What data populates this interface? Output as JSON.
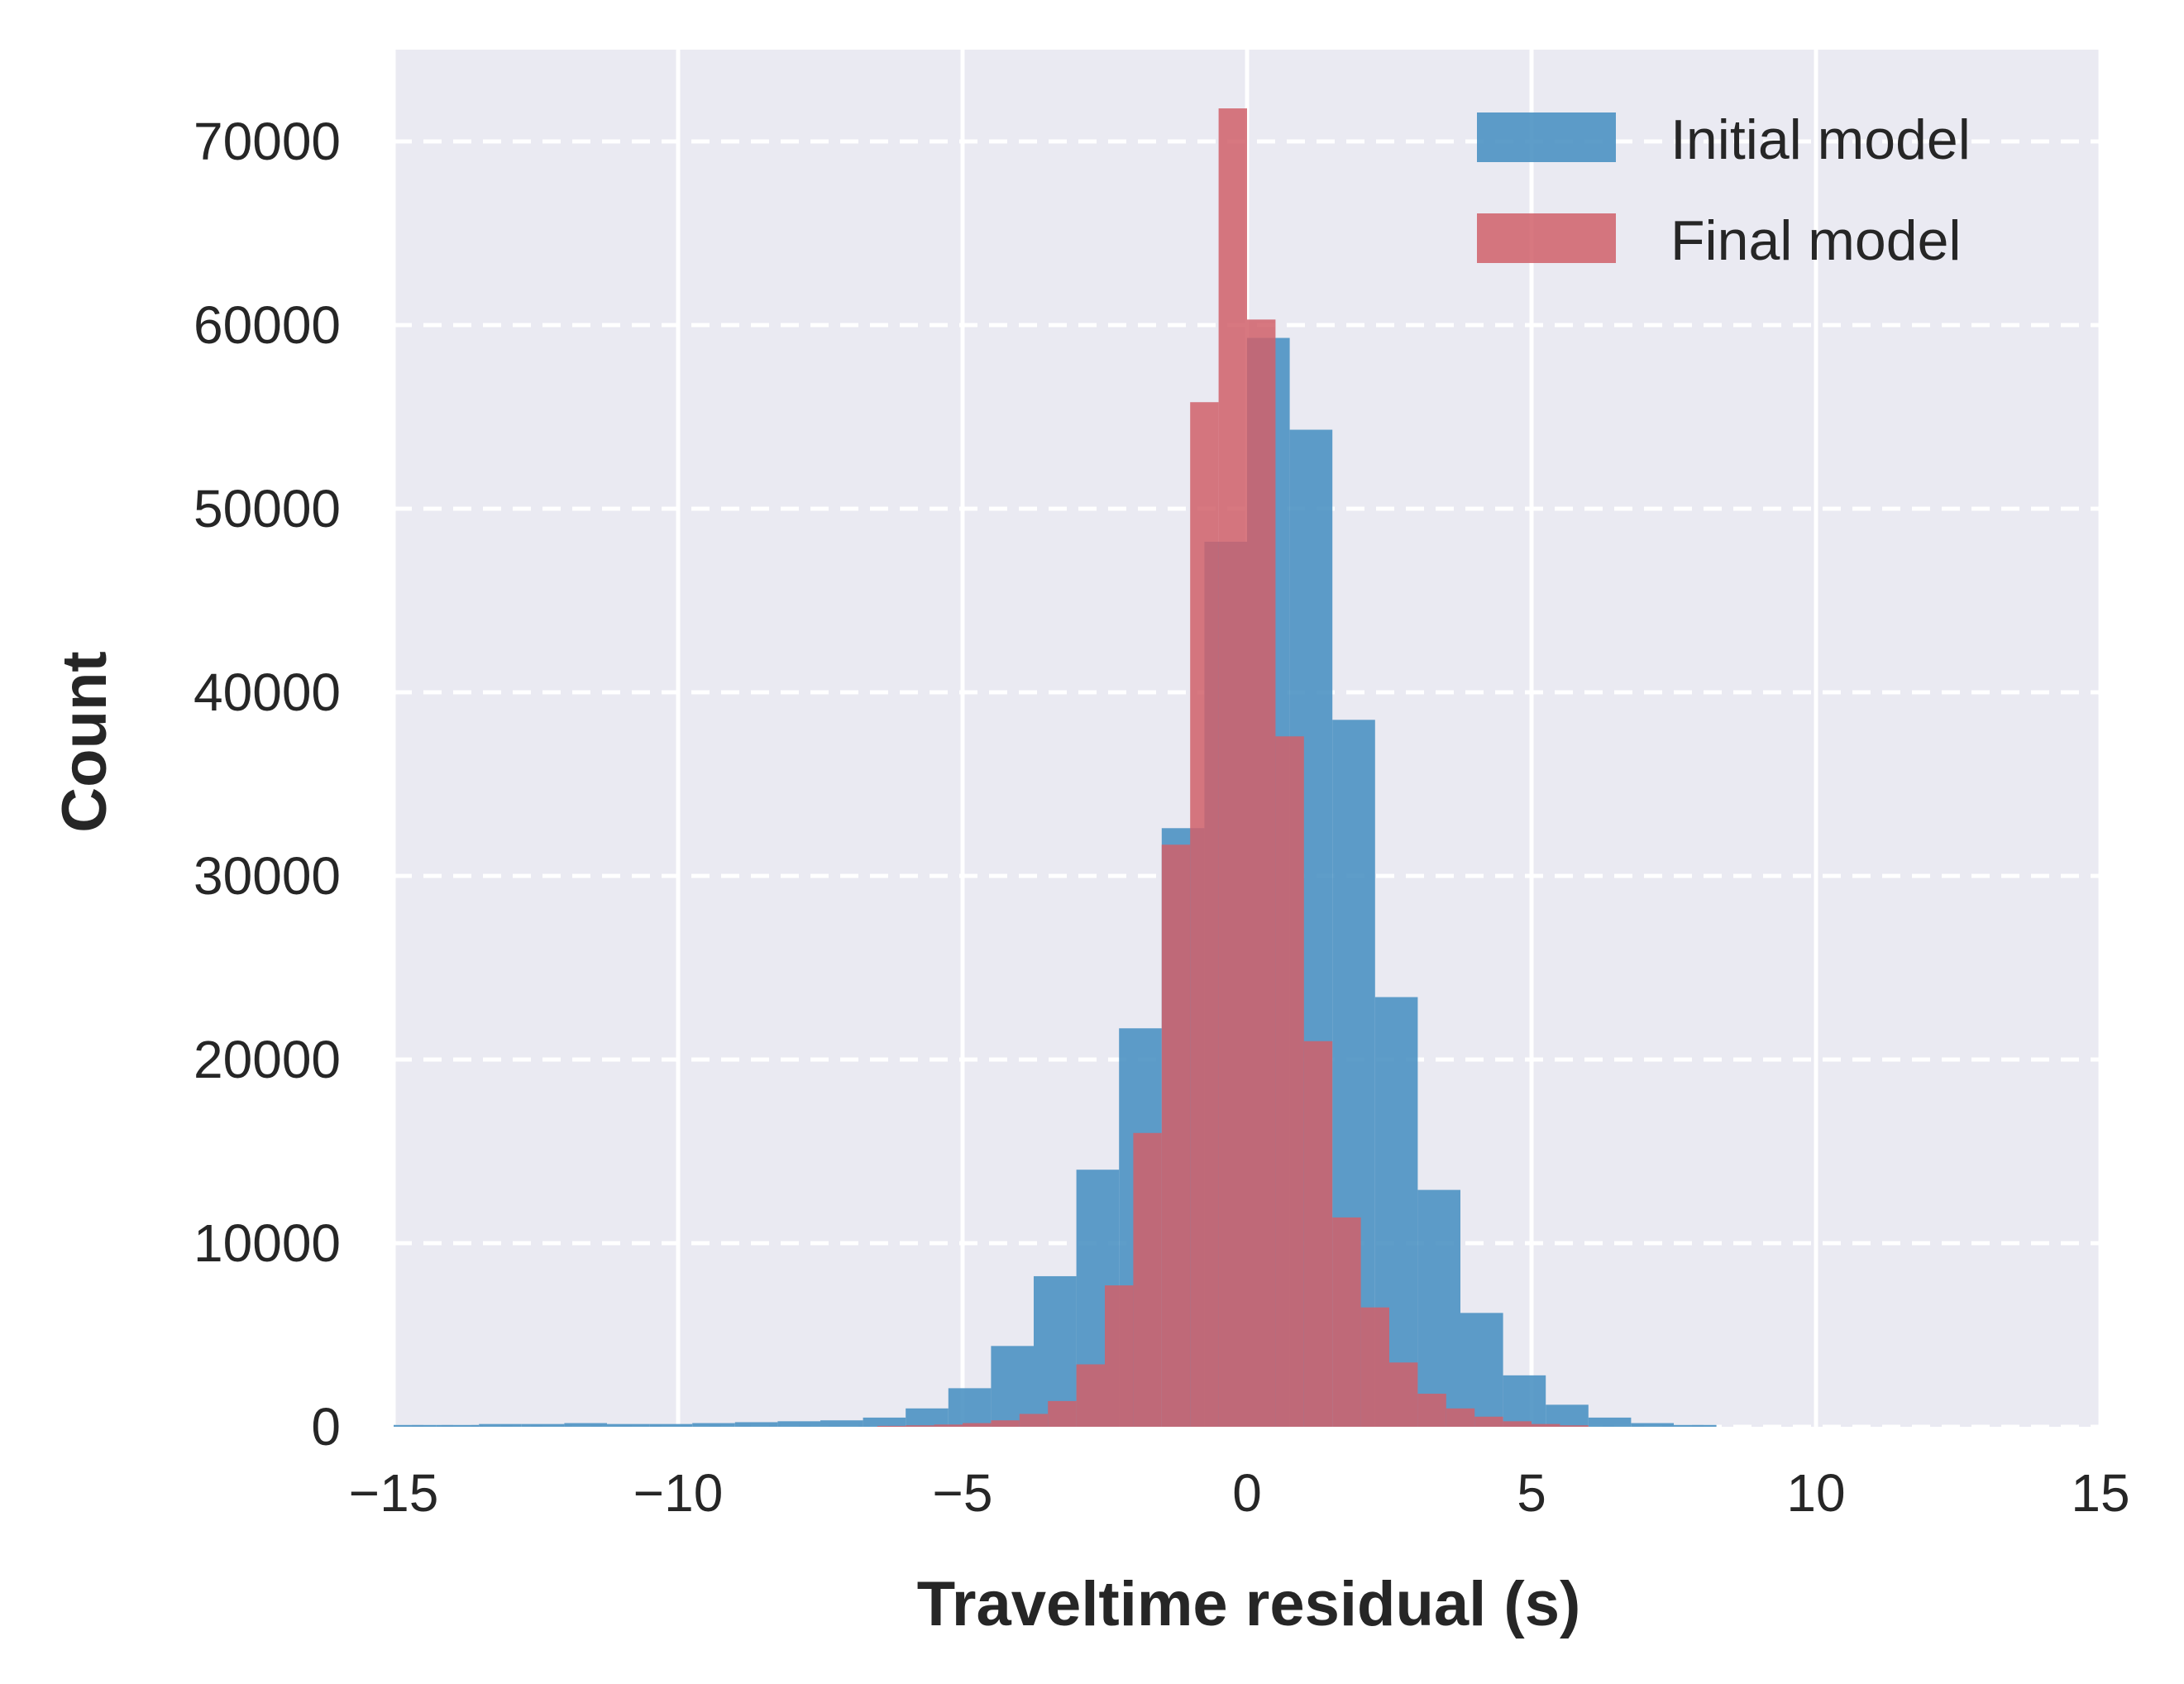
{
  "chart_data": {
    "type": "histogram",
    "title": "",
    "xlabel": "Traveltime residual (s)",
    "ylabel": "Count",
    "xlim": [
      -15,
      15
    ],
    "ylim": [
      0,
      75000
    ],
    "xticks": [
      -15,
      -10,
      -5,
      0,
      5,
      10,
      15
    ],
    "xtick_labels": [
      "−15",
      "−10",
      "−5",
      "0",
      "5",
      "10",
      "15"
    ],
    "yticks": [
      0,
      10000,
      20000,
      30000,
      40000,
      50000,
      60000,
      70000
    ],
    "ytick_labels": [
      "0",
      "10000",
      "20000",
      "30000",
      "40000",
      "50000",
      "60000",
      "70000"
    ],
    "grid": {
      "vertical": "solid",
      "horizontal": "dashed"
    },
    "background": "#eaeaf2",
    "legend": {
      "position": "top-right"
    },
    "series": [
      {
        "name": "Initial model",
        "color": "#4c92c3",
        "opacity": 0.9,
        "bins": [
          {
            "x0": -15.0,
            "x1": -14.25,
            "count": 100
          },
          {
            "x0": -14.25,
            "x1": -13.5,
            "count": 100
          },
          {
            "x0": -13.5,
            "x1": -12.75,
            "count": 150
          },
          {
            "x0": -12.75,
            "x1": -12.0,
            "count": 150
          },
          {
            "x0": -12.0,
            "x1": -11.25,
            "count": 200
          },
          {
            "x0": -11.25,
            "x1": -10.5,
            "count": 150
          },
          {
            "x0": -10.5,
            "x1": -9.75,
            "count": 150
          },
          {
            "x0": -9.75,
            "x1": -9.0,
            "count": 200
          },
          {
            "x0": -9.0,
            "x1": -8.25,
            "count": 250
          },
          {
            "x0": -8.25,
            "x1": -7.5,
            "count": 300
          },
          {
            "x0": -7.5,
            "x1": -6.75,
            "count": 350
          },
          {
            "x0": -6.75,
            "x1": -6.0,
            "count": 500
          },
          {
            "x0": -6.0,
            "x1": -5.25,
            "count": 1000
          },
          {
            "x0": -5.25,
            "x1": -4.5,
            "count": 2100
          },
          {
            "x0": -4.5,
            "x1": -3.75,
            "count": 4400
          },
          {
            "x0": -3.75,
            "x1": -3.0,
            "count": 8200
          },
          {
            "x0": -3.0,
            "x1": -2.25,
            "count": 14000
          },
          {
            "x0": -2.25,
            "x1": -1.5,
            "count": 21700
          },
          {
            "x0": -1.5,
            "x1": -0.75,
            "count": 32600
          },
          {
            "x0": -0.75,
            "x1": 0.0,
            "count": 48200
          },
          {
            "x0": 0.0,
            "x1": 0.75,
            "count": 59300
          },
          {
            "x0": 0.75,
            "x1": 1.5,
            "count": 54300
          },
          {
            "x0": 1.5,
            "x1": 2.25,
            "count": 38500
          },
          {
            "x0": 2.25,
            "x1": 3.0,
            "count": 23400
          },
          {
            "x0": 3.0,
            "x1": 3.75,
            "count": 12900
          },
          {
            "x0": 3.75,
            "x1": 4.5,
            "count": 6200
          },
          {
            "x0": 4.5,
            "x1": 5.25,
            "count": 2800
          },
          {
            "x0": 5.25,
            "x1": 6.0,
            "count": 1200
          },
          {
            "x0": 6.0,
            "x1": 6.75,
            "count": 500
          },
          {
            "x0": 6.75,
            "x1": 7.5,
            "count": 200
          },
          {
            "x0": 7.5,
            "x1": 8.25,
            "count": 100
          }
        ]
      },
      {
        "name": "Final model",
        "color": "#d0606a",
        "opacity": 0.85,
        "bins": [
          {
            "x0": -6.5,
            "x1": -6.0,
            "count": 50
          },
          {
            "x0": -6.0,
            "x1": -5.5,
            "count": 80
          },
          {
            "x0": -5.5,
            "x1": -5.0,
            "count": 120
          },
          {
            "x0": -5.0,
            "x1": -4.5,
            "count": 200
          },
          {
            "x0": -4.5,
            "x1": -4.0,
            "count": 350
          },
          {
            "x0": -4.0,
            "x1": -3.5,
            "count": 700
          },
          {
            "x0": -3.5,
            "x1": -3.0,
            "count": 1400
          },
          {
            "x0": -3.0,
            "x1": -2.5,
            "count": 3400
          },
          {
            "x0": -2.5,
            "x1": -2.0,
            "count": 7700
          },
          {
            "x0": -2.0,
            "x1": -1.5,
            "count": 16000
          },
          {
            "x0": -1.5,
            "x1": -1.0,
            "count": 31700
          },
          {
            "x0": -1.0,
            "x1": -0.5,
            "count": 55800
          },
          {
            "x0": -0.5,
            "x1": 0.0,
            "count": 71800
          },
          {
            "x0": 0.0,
            "x1": 0.5,
            "count": 60300
          },
          {
            "x0": 0.5,
            "x1": 1.0,
            "count": 37600
          },
          {
            "x0": 1.0,
            "x1": 1.5,
            "count": 21000
          },
          {
            "x0": 1.5,
            "x1": 2.0,
            "count": 11400
          },
          {
            "x0": 2.0,
            "x1": 2.5,
            "count": 6500
          },
          {
            "x0": 2.5,
            "x1": 3.0,
            "count": 3500
          },
          {
            "x0": 3.0,
            "x1": 3.5,
            "count": 1800
          },
          {
            "x0": 3.5,
            "x1": 4.0,
            "count": 1000
          },
          {
            "x0": 4.0,
            "x1": 4.5,
            "count": 550
          },
          {
            "x0": 4.5,
            "x1": 5.0,
            "count": 300
          },
          {
            "x0": 5.0,
            "x1": 5.5,
            "count": 150
          },
          {
            "x0": 5.5,
            "x1": 6.0,
            "count": 80
          }
        ]
      }
    ]
  }
}
